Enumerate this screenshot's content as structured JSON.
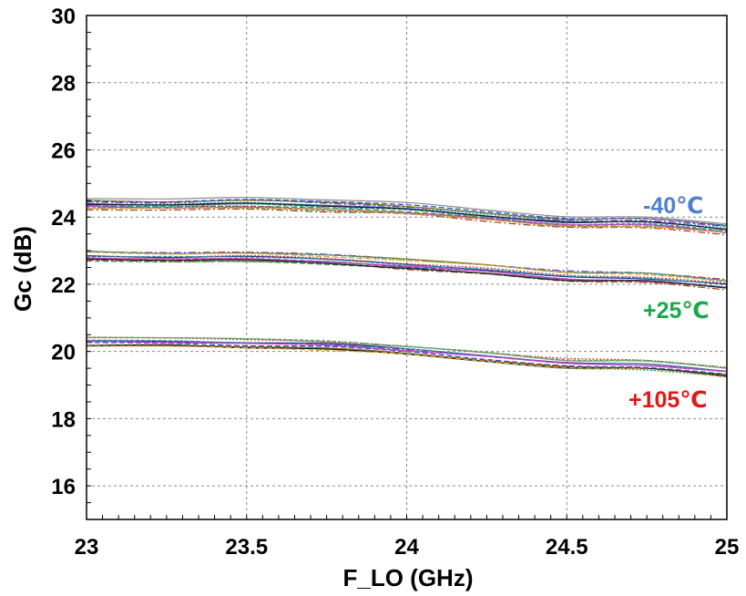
{
  "chart_data": {
    "type": "line",
    "title": "",
    "xlabel": "F_LO (GHz)",
    "ylabel": "Gc (dB)",
    "xlim": [
      23,
      25
    ],
    "ylim": [
      15,
      30
    ],
    "x_ticks": [
      23,
      23.5,
      24,
      24.5,
      25
    ],
    "x_tick_labels": [
      "23",
      "23.5",
      "24",
      "24.5",
      "25"
    ],
    "y_ticks": [
      16,
      18,
      20,
      22,
      24,
      26,
      28,
      30
    ],
    "y_tick_labels": [
      "16",
      "18",
      "20",
      "22",
      "24",
      "26",
      "28",
      "30"
    ],
    "grid": true,
    "x": [
      23.0,
      23.25,
      23.5,
      23.75,
      24.0,
      24.25,
      24.5,
      24.75,
      25.0
    ],
    "groups": [
      {
        "label": "-40℃",
        "color": "#4f7fd0",
        "typical": [
          24.4,
          24.38,
          24.42,
          24.35,
          24.25,
          24.05,
          23.85,
          23.85,
          23.65
        ],
        "spread": 0.18,
        "curve_count": 14
      },
      {
        "label": "+25℃",
        "color": "#1aa84a",
        "typical": [
          22.85,
          22.82,
          22.82,
          22.75,
          22.6,
          22.45,
          22.25,
          22.2,
          22.0
        ],
        "spread": 0.16,
        "curve_count": 14
      },
      {
        "label": "+105℃",
        "color": "#e01818",
        "typical": [
          20.3,
          20.3,
          20.25,
          20.2,
          20.05,
          19.85,
          19.65,
          19.6,
          19.4
        ],
        "spread": 0.15,
        "curve_count": 14
      }
    ],
    "curve_colors": [
      "#1f2f8f",
      "#2a9a3a",
      "#d02a2a",
      "#9a2ab0",
      "#2a9aa6",
      "#7a7a1a",
      "#8a8a8a",
      "#2050d0",
      "#10a0e0",
      "#a04020",
      "#50b050",
      "#c040c0",
      "#202020",
      "#e0a020"
    ]
  }
}
